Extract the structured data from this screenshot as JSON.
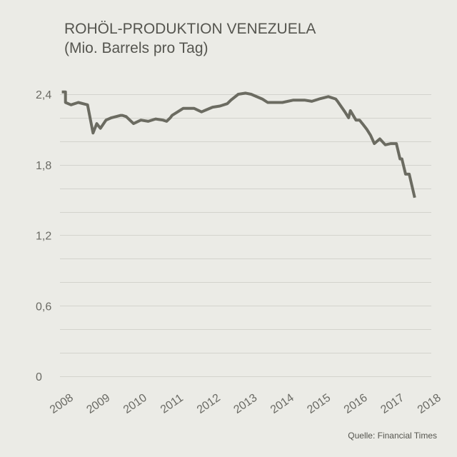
{
  "chart_data": {
    "type": "line",
    "title": "ROHÖL-PRODUKTION VENEZUELA",
    "subtitle": "(Mio. Barrels pro Tag)",
    "xlabel": "",
    "ylabel": "",
    "ylim": [
      0,
      2.4
    ],
    "y_ticks": [
      "0",
      "0,6",
      "1,2",
      "1,8",
      "2,4"
    ],
    "y_tick_values": [
      0,
      0.6,
      1.2,
      1.8,
      2.4
    ],
    "x_ticks": [
      "2008",
      "2009",
      "2010",
      "2011",
      "2012",
      "2013",
      "2014",
      "2015",
      "2016",
      "2017",
      "2018"
    ],
    "xlim": [
      2007.95,
      2018.05
    ],
    "grid": true,
    "series": [
      {
        "name": "Rohöl-Produktion",
        "color": "#6b6b61",
        "x": [
          2008.0,
          2008.1,
          2008.1,
          2008.25,
          2008.45,
          2008.7,
          2008.85,
          2008.95,
          2009.05,
          2009.2,
          2009.35,
          2009.6,
          2009.65,
          2009.75,
          2009.95,
          2010.15,
          2010.35,
          2010.55,
          2010.75,
          2010.85,
          2010.95,
          2011.0,
          2011.3,
          2011.6,
          2011.8,
          2011.95,
          2012.1,
          2012.3,
          2012.5,
          2012.6,
          2012.8,
          2013.0,
          2013.15,
          2013.45,
          2013.6,
          2013.8,
          2014.0,
          2014.3,
          2014.6,
          2014.8,
          2015.0,
          2015.25,
          2015.45,
          2015.5,
          2015.7,
          2015.8,
          2015.85,
          2016.0,
          2016.1,
          2016.2,
          2016.3,
          2016.4,
          2016.5,
          2016.65,
          2016.8,
          2016.95,
          2017.0,
          2017.1,
          2017.2,
          2017.25,
          2017.35,
          2017.45,
          2017.6
        ],
        "values": [
          2.42,
          2.42,
          2.33,
          2.31,
          2.33,
          2.31,
          2.07,
          2.15,
          2.11,
          2.18,
          2.2,
          2.22,
          2.22,
          2.21,
          2.15,
          2.18,
          2.17,
          2.19,
          2.18,
          2.17,
          2.2,
          2.22,
          2.28,
          2.28,
          2.25,
          2.27,
          2.29,
          2.3,
          2.32,
          2.35,
          2.4,
          2.41,
          2.4,
          2.36,
          2.33,
          2.33,
          2.33,
          2.35,
          2.35,
          2.34,
          2.36,
          2.38,
          2.36,
          2.34,
          2.25,
          2.2,
          2.26,
          2.18,
          2.18,
          2.14,
          2.1,
          2.05,
          1.98,
          2.02,
          1.97,
          1.98,
          1.98,
          1.98,
          1.85,
          1.85,
          1.72,
          1.72,
          1.52
        ]
      }
    ]
  },
  "source": "Quelle: Financial Times"
}
